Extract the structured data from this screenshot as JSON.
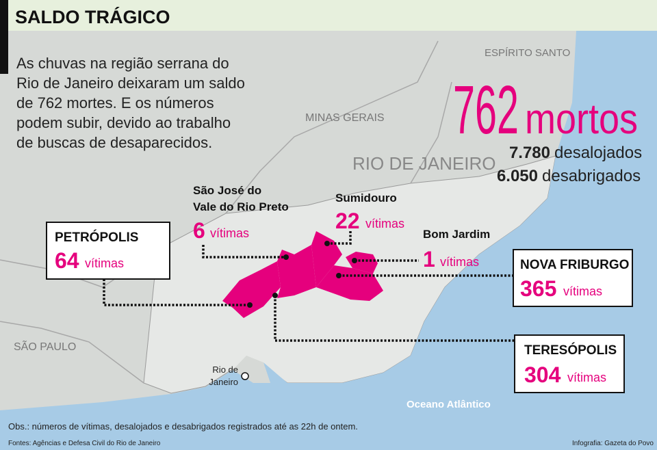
{
  "header": {
    "title": "SALDO TRÁGICO"
  },
  "intro": {
    "lines": [
      "As chuvas na região serrana do",
      "Rio de Janeiro deixaram um saldo",
      "de 762 mortes. E os números",
      "podem subir, devido ao trabalho",
      "de buscas de desaparecidos."
    ]
  },
  "totals": {
    "deaths": 762,
    "deaths_label": "mortos",
    "displaced": "7.780",
    "displaced_label": "desalojados",
    "homeless": "6.050",
    "homeless_label": "desabrigados"
  },
  "map_labels": {
    "espirito_santo": "ESPÍRITO SANTO",
    "minas_gerais": "MINAS GERAIS",
    "rio_de_janeiro_state": "RIO DE JANEIRO",
    "sao_paulo": "SÃO PAULO",
    "rio_city": [
      "Rio de",
      "Janeiro"
    ],
    "ocean": "Oceano Atlântico"
  },
  "victims_label": "vítimas",
  "cities": [
    {
      "name": [
        "PETRÓPOLIS"
      ],
      "victims": 64
    },
    {
      "name": [
        "São José do",
        "Vale do Rio Preto"
      ],
      "victims": 6
    },
    {
      "name": [
        "Sumidouro"
      ],
      "victims": 22
    },
    {
      "name": [
        "Bom Jardim"
      ],
      "victims": 1
    },
    {
      "name": [
        "NOVA FRIBURGO"
      ],
      "victims": 365
    },
    {
      "name": [
        "TERESÓPOLIS"
      ],
      "victims": 304
    }
  ],
  "footer": {
    "note": "Obs.: números de vítimas, desalojados e desabrigados registrados até as 22h de ontem.",
    "sources": "Fontes: Agências e Defesa Civil do Rio de Janeiro",
    "credit": "Infografia: Gazeta do Povo"
  }
}
